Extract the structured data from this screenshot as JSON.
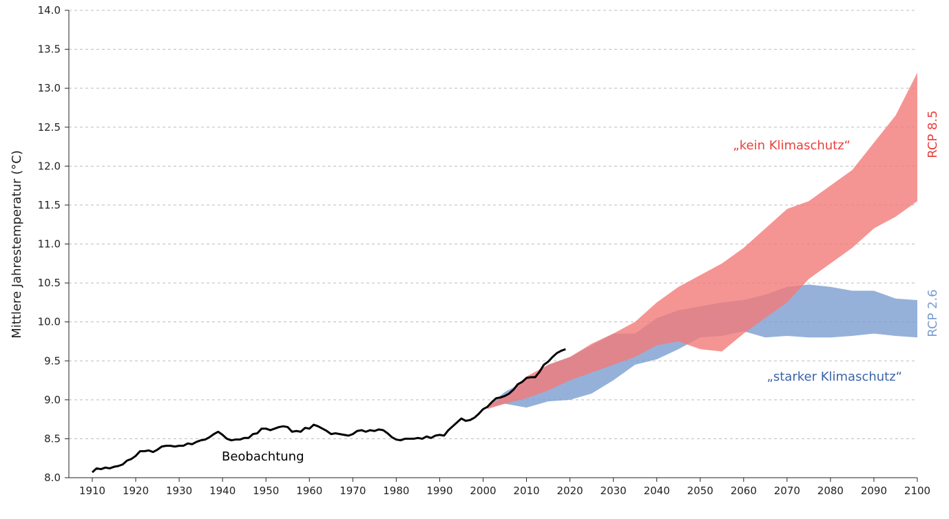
{
  "chart_data": {
    "type": "line",
    "y_label": "Mittlere Jahrestemperatur (°C)",
    "xlim": [
      1910,
      2100
    ],
    "ylim": [
      8.0,
      14.0
    ],
    "xticks": [
      1910,
      1920,
      1930,
      1940,
      1950,
      1960,
      1970,
      1980,
      1990,
      2000,
      2010,
      2020,
      2030,
      2040,
      2050,
      2060,
      2070,
      2080,
      2090,
      2100
    ],
    "yticks": [
      {
        "value": 8.0,
        "label": "8.0"
      },
      8.5,
      {
        "value": 9.0,
        "label": "9.0"
      },
      9.5,
      {
        "value": 10.0,
        "label": "10.0"
      },
      10.5,
      {
        "value": 11.0,
        "label": "11.0"
      },
      11.5,
      {
        "value": 12.0,
        "label": "12.0"
      },
      12.5,
      {
        "value": 13.0,
        "label": "13.0"
      },
      13.5,
      {
        "value": 14.0,
        "label": "14.0"
      }
    ],
    "grid": true,
    "series": [
      {
        "type": "band",
        "name": "RCP 2.6",
        "label": "„starker Klimaschutz“",
        "color": "#7b9dd0",
        "x": [
          2001,
          2005,
          2010,
          2015,
          2020,
          2025,
          2030,
          2035,
          2040,
          2045,
          2050,
          2055,
          2060,
          2065,
          2070,
          2075,
          2080,
          2085,
          2090,
          2095,
          2100
        ],
        "lower": [
          8.9,
          8.95,
          8.9,
          8.98,
          9.0,
          9.08,
          9.25,
          9.45,
          9.52,
          9.65,
          9.8,
          9.82,
          9.88,
          9.8,
          9.82,
          9.8,
          9.8,
          9.82,
          9.85,
          9.82,
          9.8
        ],
        "upper": [
          8.92,
          9.1,
          9.25,
          9.45,
          9.55,
          9.7,
          9.85,
          9.85,
          10.05,
          10.15,
          10.2,
          10.25,
          10.28,
          10.35,
          10.45,
          10.48,
          10.45,
          10.4,
          10.4,
          10.3,
          10.28
        ]
      },
      {
        "type": "band",
        "name": "RCP 8.5",
        "label": "„kein Klimaschutz“",
        "color": "#f27b78",
        "x": [
          2001,
          2005,
          2010,
          2015,
          2020,
          2025,
          2030,
          2035,
          2040,
          2045,
          2050,
          2055,
          2060,
          2065,
          2070,
          2075,
          2080,
          2085,
          2090,
          2095,
          2100
        ],
        "lower": [
          8.88,
          8.95,
          9.02,
          9.12,
          9.25,
          9.35,
          9.45,
          9.55,
          9.7,
          9.75,
          9.65,
          9.62,
          9.85,
          10.05,
          10.25,
          10.55,
          10.75,
          10.95,
          11.2,
          11.35,
          11.55
        ],
        "upper": [
          8.92,
          9.05,
          9.3,
          9.45,
          9.55,
          9.72,
          9.85,
          10.0,
          10.25,
          10.45,
          10.6,
          10.75,
          10.95,
          11.2,
          11.45,
          11.55,
          11.75,
          11.95,
          12.3,
          12.65,
          13.2
        ]
      },
      {
        "type": "line",
        "name": "Beobachtung",
        "color": "#000000",
        "x": [
          1910,
          1911,
          1912,
          1913,
          1914,
          1915,
          1916,
          1917,
          1918,
          1919,
          1920,
          1921,
          1922,
          1923,
          1924,
          1925,
          1926,
          1927,
          1928,
          1929,
          1930,
          1931,
          1932,
          1933,
          1934,
          1935,
          1936,
          1937,
          1938,
          1939,
          1940,
          1941,
          1942,
          1943,
          1944,
          1945,
          1946,
          1947,
          1948,
          1949,
          1950,
          1951,
          1952,
          1953,
          1954,
          1955,
          1956,
          1957,
          1958,
          1959,
          1960,
          1961,
          1962,
          1963,
          1964,
          1965,
          1966,
          1967,
          1968,
          1969,
          1970,
          1971,
          1972,
          1973,
          1974,
          1975,
          1976,
          1977,
          1978,
          1979,
          1980,
          1981,
          1982,
          1983,
          1984,
          1985,
          1986,
          1987,
          1988,
          1989,
          1990,
          1991,
          1992,
          1993,
          1994,
          1995,
          1996,
          1997,
          1998,
          1999,
          2000,
          2001,
          2002,
          2003,
          2004,
          2005,
          2006,
          2007,
          2008,
          2009,
          2010,
          2011,
          2012,
          2013,
          2014,
          2015,
          2016,
          2017,
          2018,
          2019
        ],
        "values": [
          8.07,
          8.12,
          8.11,
          8.13,
          8.12,
          8.14,
          8.15,
          8.17,
          8.22,
          8.24,
          8.28,
          8.34,
          8.34,
          8.35,
          8.33,
          8.36,
          8.4,
          8.41,
          8.41,
          8.4,
          8.41,
          8.41,
          8.44,
          8.43,
          8.46,
          8.48,
          8.49,
          8.52,
          8.56,
          8.59,
          8.55,
          8.5,
          8.48,
          8.49,
          8.49,
          8.51,
          8.51,
          8.56,
          8.57,
          8.63,
          8.63,
          8.61,
          8.63,
          8.65,
          8.66,
          8.65,
          8.59,
          8.6,
          8.59,
          8.64,
          8.63,
          8.68,
          8.66,
          8.63,
          8.6,
          8.56,
          8.57,
          8.56,
          8.55,
          8.54,
          8.56,
          8.6,
          8.61,
          8.59,
          8.61,
          8.6,
          8.62,
          8.61,
          8.57,
          8.52,
          8.49,
          8.48,
          8.5,
          8.5,
          8.5,
          8.51,
          8.5,
          8.53,
          8.51,
          8.54,
          8.55,
          8.54,
          8.61,
          8.66,
          8.71,
          8.76,
          8.73,
          8.74,
          8.77,
          8.82,
          8.88,
          8.91,
          8.97,
          9.02,
          9.03,
          9.05,
          9.08,
          9.13,
          9.2,
          9.23,
          9.28,
          9.29,
          9.29,
          9.36,
          9.45,
          9.49,
          9.55,
          9.6,
          9.63,
          9.65
        ]
      }
    ]
  }
}
